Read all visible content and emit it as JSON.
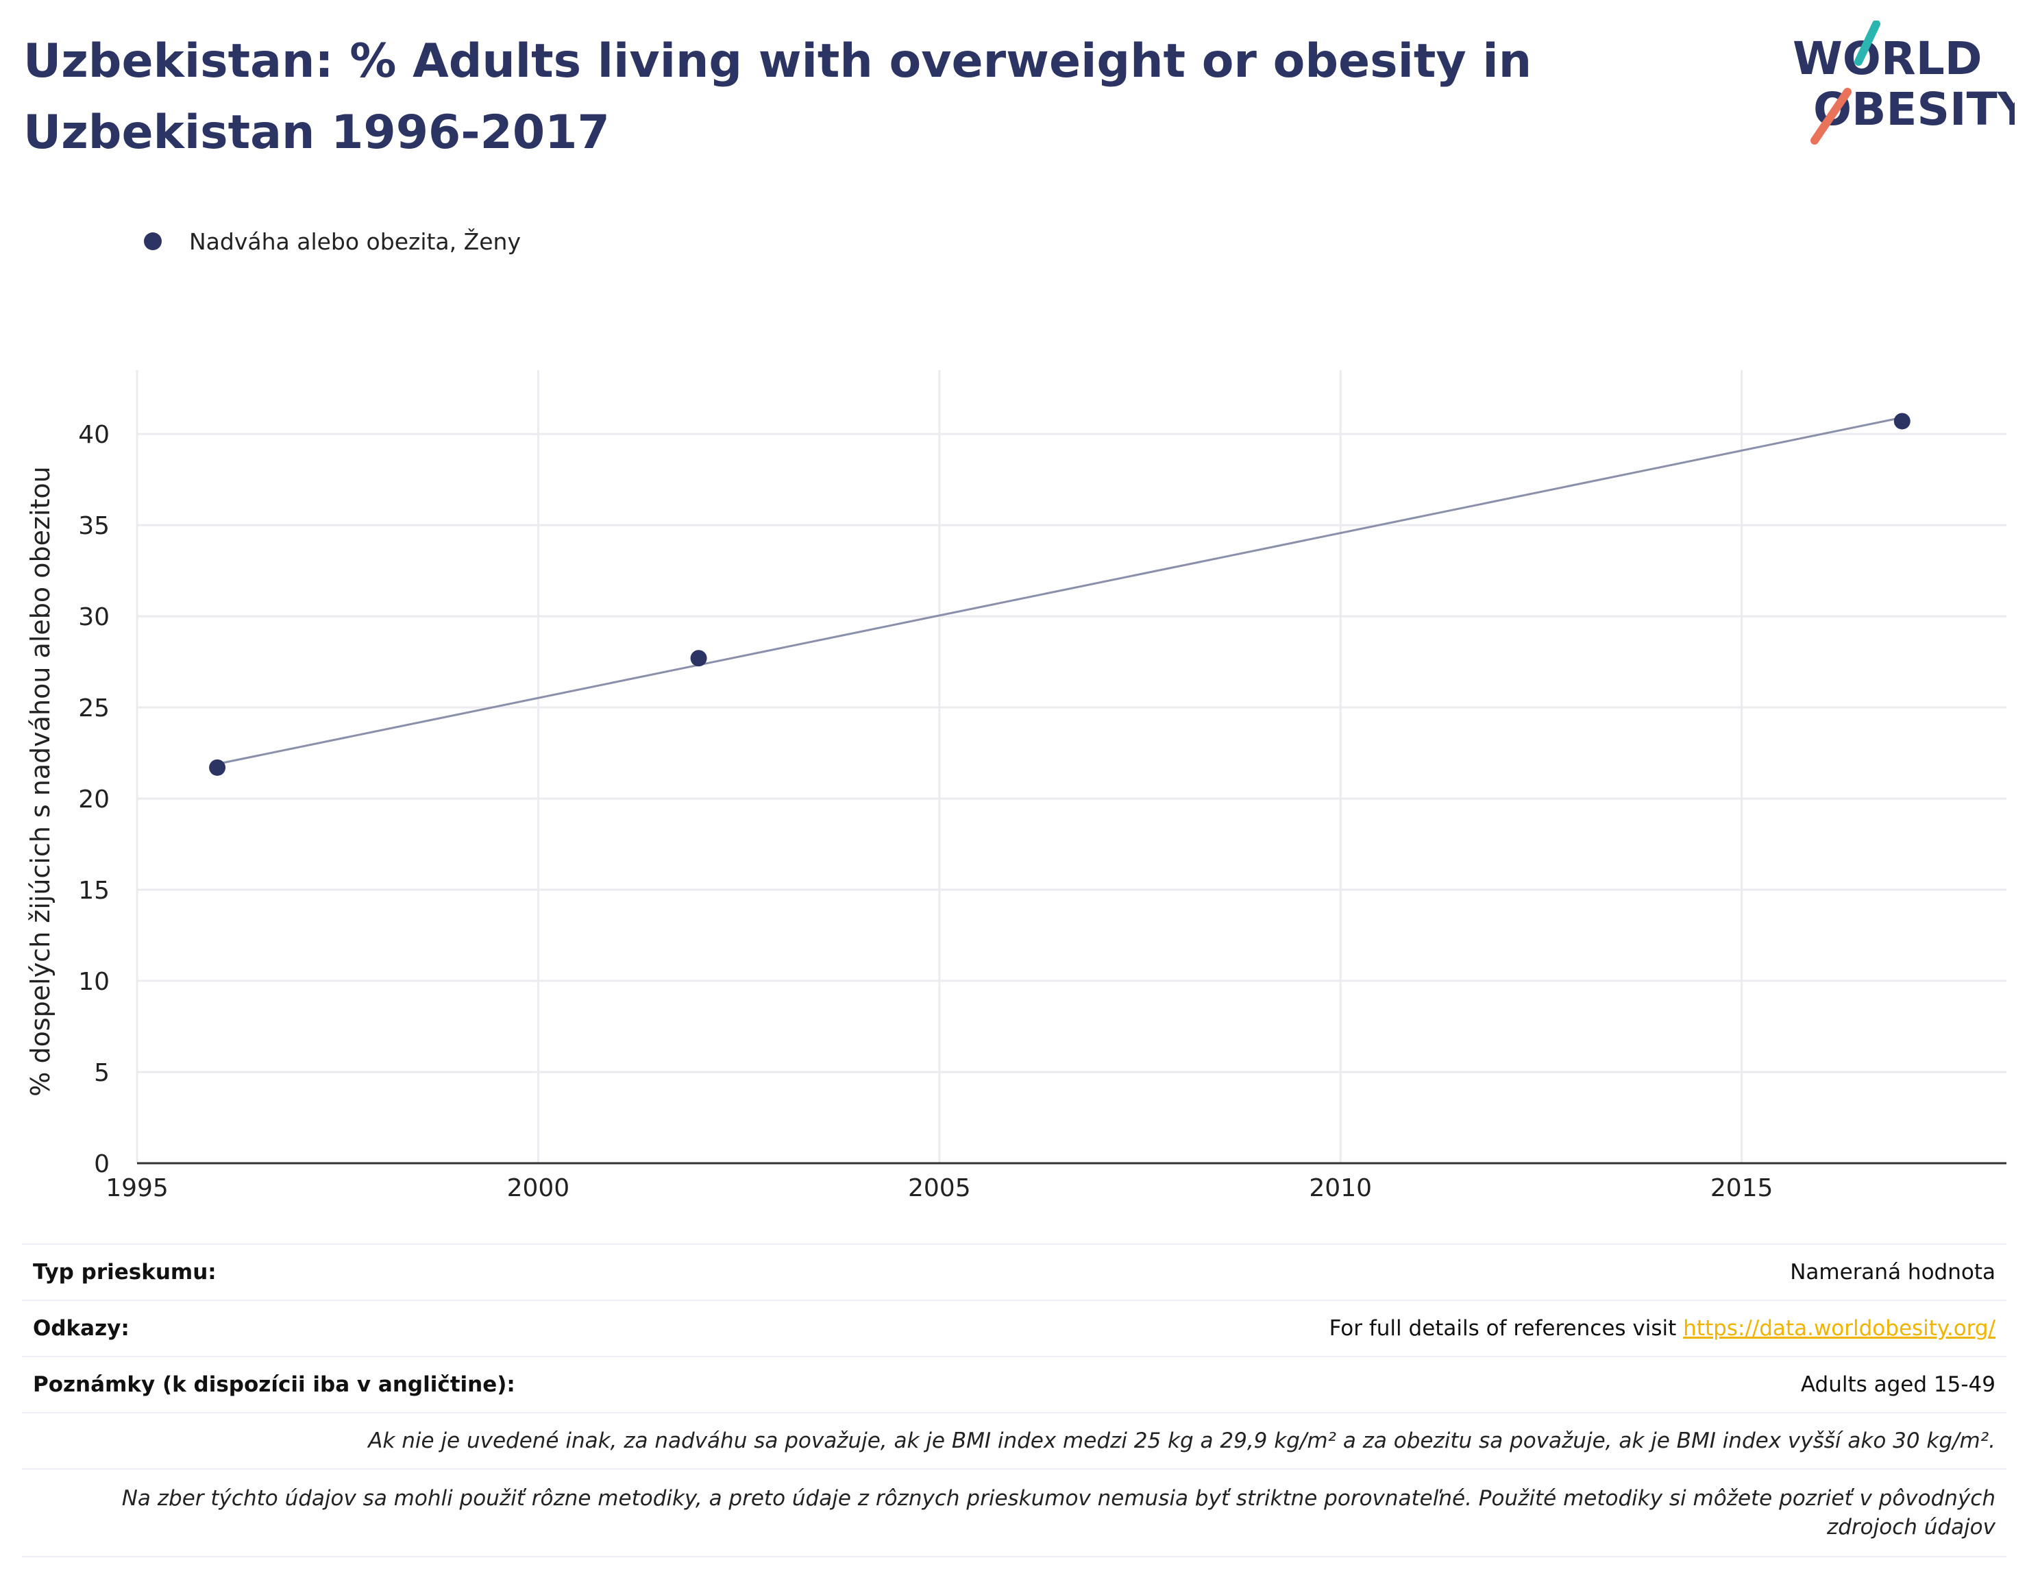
{
  "title": "Uzbekistan: % Adults living with overweight or obesity in Uzbekistan 1996-2017",
  "logo": {
    "line1": "WORLD",
    "line2": "OBESITY",
    "colors": {
      "text": "#2b3463",
      "teal": "#2bb5b0",
      "coral": "#e8735a"
    }
  },
  "legend": {
    "label": "Nadváha alebo obezita, Ženy",
    "color": "#2b3463"
  },
  "chart_data": {
    "type": "scatter",
    "title": "",
    "xlabel": "",
    "ylabel": "% dospelých žijúcich s nadváhou alebo obezitou",
    "xlim": [
      1995,
      2018.3
    ],
    "ylim": [
      0,
      43.5
    ],
    "xticks": [
      1995,
      2000,
      2005,
      2010,
      2015
    ],
    "yticks": [
      0,
      5,
      10,
      15,
      20,
      25,
      30,
      35,
      40
    ],
    "grid": true,
    "series": [
      {
        "name": "Nadváha alebo obezita, Ženy",
        "color": "#2b3463",
        "points": [
          {
            "x": 1996,
            "y": 21.7
          },
          {
            "x": 2002,
            "y": 27.7
          },
          {
            "x": 2017,
            "y": 40.7
          }
        ]
      }
    ],
    "trendline": {
      "color": "#8a90aa",
      "points": [
        {
          "x": 1996,
          "y": 21.9
        },
        {
          "x": 2017,
          "y": 40.9
        }
      ]
    }
  },
  "notes": {
    "survey_type_label": "Typ prieskumu:",
    "survey_type_value": "Nameraná hodnota",
    "references_label": "Odkazy:",
    "references_text": "For full details of references visit ",
    "references_link": "https://data.worldobesity.org/",
    "remarks_label": "Poznámky (k dispozícii iba v angličtine):",
    "remarks_value": "Adults aged 15-49",
    "bmi_note": "Ak nie je uvedené inak, za nadváhu sa považuje, ak je BMI index medzi 25 kg a 29,9 kg/m² a za obezitu sa považuje, ak je BMI index vyšší ako 30 kg/m².",
    "method_note": "Na zber týchto údajov sa mohli použiť rôzne metodiky, a preto údaje z rôznych prieskumov nemusia byť striktne porovnateľné. Použité metodiky si môžete pozrieť v pôvodných zdrojoch údajov"
  }
}
